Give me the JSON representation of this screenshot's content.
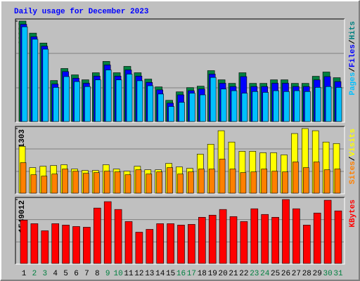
{
  "chart_data": [
    {
      "type": "bar",
      "title": "Daily usage for December 2023",
      "ylim": [
        0,
        60931
      ],
      "yticks": [
        60931
      ],
      "legend_separator": "/",
      "series": [
        {
          "name": "Hits",
          "color": "#008040",
          "label_color": "#008080",
          "values": [
            60931,
            53690,
            47720,
            25140,
            32380,
            28550,
            25570,
            29830,
            36640,
            29830,
            33660,
            29830,
            25990,
            21300,
            13210,
            18320,
            20880,
            21730,
            31100,
            25570,
            23430,
            29830,
            23430,
            23430,
            25570,
            25570,
            23430,
            23430,
            27700,
            30250,
            26840
          ]
        },
        {
          "name": "Files",
          "color": "#0000ff",
          "label_color": "#0000ff",
          "values": [
            59000,
            51500,
            45800,
            23000,
            30500,
            26500,
            23500,
            27800,
            34500,
            27800,
            31500,
            27800,
            24000,
            19500,
            11500,
            16500,
            19000,
            20000,
            29000,
            23500,
            21500,
            27500,
            21500,
            21500,
            23500,
            23500,
            21500,
            21500,
            25500,
            27500,
            24500
          ]
        },
        {
          "name": "Pages",
          "color": "#00c0ff",
          "label_color": "#00c0ff",
          "values": [
            57500,
            50000,
            44000,
            21000,
            27500,
            24500,
            21500,
            25500,
            31500,
            25500,
            29000,
            25000,
            22000,
            17000,
            9500,
            12000,
            17500,
            16500,
            27000,
            20000,
            19000,
            17500,
            18500,
            18000,
            19000,
            18500,
            19000,
            18500,
            21000,
            21500,
            21000
          ]
        }
      ]
    },
    {
      "type": "bar",
      "ylim": [
        0,
        1303
      ],
      "yticks": [
        1303
      ],
      "legend_separator": "/",
      "series": [
        {
          "name": "Visits",
          "color": "#ffff00",
          "label_color": "#ffff00",
          "values": [
            949,
            524,
            552,
            566,
            581,
            496,
            467,
            467,
            581,
            496,
            453,
            552,
            481,
            481,
            609,
            538,
            510,
            793,
            991,
            1260,
            1034,
            850,
            850,
            821,
            821,
            779,
            1204,
            1303,
            1260,
            1034,
            1005
          ]
        },
        {
          "name": "Sites",
          "color": "#ff8000",
          "label_color": "#ff8000",
          "values": [
            623,
            382,
            354,
            396,
            496,
            453,
            411,
            425,
            453,
            439,
            382,
            481,
            396,
            439,
            524,
            396,
            439,
            496,
            496,
            694,
            496,
            425,
            439,
            496,
            453,
            439,
            637,
            524,
            637,
            481,
            496
          ]
        }
      ]
    },
    {
      "type": "bar",
      "ylim": [
        0,
        1549012
      ],
      "yticks": [
        1549012
      ],
      "categories": [
        "1",
        "2",
        "3",
        "4",
        "5",
        "6",
        "7",
        "8",
        "9",
        "10",
        "11",
        "12",
        "13",
        "14",
        "15",
        "16",
        "17",
        "18",
        "19",
        "20",
        "21",
        "22",
        "23",
        "24",
        "25",
        "26",
        "27",
        "28",
        "29",
        "30",
        "31"
      ],
      "category_colors": [
        "#000000",
        "#008040",
        "#008040",
        "#000000",
        "#000000",
        "#000000",
        "#000000",
        "#000000",
        "#008040",
        "#008040",
        "#000000",
        "#000000",
        "#000000",
        "#000000",
        "#000000",
        "#008040",
        "#008040",
        "#000000",
        "#000000",
        "#000000",
        "#000000",
        "#000000",
        "#008040",
        "#008040",
        "#000000",
        "#000000",
        "#000000",
        "#000000",
        "#000000",
        "#008040",
        "#008040"
      ],
      "series": [
        {
          "name": "KBytes",
          "color": "#ff0000",
          "label_color": "#ff0000",
          "values": [
            1055364,
            970254,
            800034,
            970254,
            936210,
            902166,
            885144,
            1344738,
            1497936,
            1310694,
            1021320,
            765990,
            834078,
            970254,
            970254,
            936210,
            953232,
            1123452,
            1174518,
            1310694,
            1140474,
            1021320,
            1327716,
            1191540,
            1123452,
            1549012,
            1327716,
            936210,
            1225584,
            1532000,
            1276650
          ]
        }
      ]
    }
  ]
}
